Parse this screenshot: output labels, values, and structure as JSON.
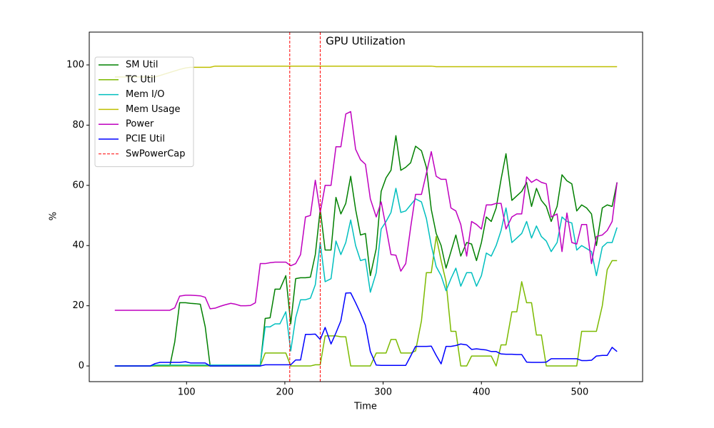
{
  "chart_data": {
    "type": "line",
    "title": "GPU Utilization",
    "x_label": "Time",
    "y_label": "%",
    "x": [
      27,
      32,
      37,
      42,
      47,
      53,
      58,
      63,
      68,
      73,
      78,
      83,
      88,
      93,
      99,
      104,
      109,
      114,
      119,
      124,
      129,
      134,
      139,
      145,
      150,
      155,
      160,
      165,
      170,
      175,
      180,
      185,
      190,
      195,
      201,
      206,
      211,
      216,
      221,
      226,
      231,
      236,
      241,
      247,
      252,
      257,
      262,
      267,
      272,
      277,
      282,
      287,
      293,
      298,
      303,
      308,
      313,
      318,
      323,
      328,
      333,
      339,
      344,
      349,
      354,
      359,
      364,
      369,
      374,
      379,
      385,
      390,
      395,
      400,
      405,
      410,
      415,
      420,
      425,
      431,
      436,
      441,
      446,
      451,
      456,
      461,
      466,
      471,
      477,
      482,
      487,
      492,
      497,
      502,
      507,
      512,
      517,
      523,
      528,
      533,
      538
    ],
    "series": [
      {
        "name": "SM Util",
        "color": "#008000",
        "values": [
          0,
          0,
          0,
          0,
          0,
          0,
          0,
          0,
          0,
          0,
          0,
          0,
          8,
          21,
          21,
          20.8,
          20.7,
          20.5,
          13,
          0,
          0,
          0,
          0,
          0,
          0,
          0,
          0,
          0,
          0,
          0,
          15.8,
          16,
          25.5,
          25.5,
          30,
          14,
          29,
          29.3,
          29.3,
          29.5,
          37,
          52,
          38.5,
          38.5,
          56,
          50.5,
          54,
          63,
          52,
          43.5,
          44,
          30,
          39,
          58,
          62.5,
          65,
          76.5,
          65,
          66,
          67.5,
          73,
          71.5,
          66,
          52,
          44,
          40,
          32.5,
          38,
          43.5,
          36.5,
          41,
          40.5,
          35,
          41,
          49.5,
          48,
          52.5,
          62,
          70.5,
          55,
          56.5,
          58,
          61,
          53,
          59,
          55,
          53,
          48,
          53,
          63.5,
          61.5,
          60.5,
          51.5,
          53.5,
          52.5,
          50.5,
          40,
          52.5,
          53.5,
          53,
          61
        ]
      },
      {
        "name": "TC Util",
        "color": "#7cba00",
        "values": [
          0,
          0,
          0,
          0,
          0,
          0,
          0,
          0,
          0,
          0,
          0,
          0,
          0,
          0,
          0,
          0,
          0,
          0,
          0,
          0,
          0,
          0,
          0,
          0,
          0,
          0,
          0,
          0,
          0,
          0,
          4.3,
          4.3,
          4.3,
          4.3,
          4.3,
          0,
          0,
          0,
          0,
          0,
          0.4,
          0.4,
          10,
          10,
          10,
          9.7,
          9.7,
          0,
          0,
          0,
          0,
          0,
          4.3,
          4.3,
          4.3,
          8.8,
          8.8,
          4.3,
          4.3,
          4.3,
          5,
          15,
          31,
          31,
          43,
          35,
          28,
          11.5,
          11.5,
          0,
          0,
          3.3,
          3.3,
          3.3,
          3.3,
          3.3,
          0,
          7,
          7,
          18,
          18,
          28,
          21,
          21,
          10.3,
          10.3,
          0,
          0,
          0,
          0,
          0,
          0,
          0,
          11.5,
          11.5,
          11.5,
          11.5,
          20,
          32,
          35,
          35
        ]
      },
      {
        "name": "Mem I/O",
        "color": "#00bfbf",
        "values": [
          0,
          0,
          0,
          0,
          0,
          0,
          0,
          0,
          0.3,
          0.3,
          0.3,
          0.3,
          0.3,
          0.3,
          0.3,
          0.3,
          0.3,
          0.3,
          0.3,
          0.3,
          0.3,
          0.3,
          0.3,
          0.3,
          0.3,
          0.3,
          0.3,
          0.3,
          0.3,
          0.3,
          13,
          13,
          14,
          14,
          18,
          5,
          16,
          22,
          22,
          22.5,
          27,
          41,
          28,
          29,
          41.5,
          37,
          41,
          48.5,
          40,
          35,
          35.5,
          24.5,
          31,
          45.5,
          48,
          51,
          59,
          51,
          51.5,
          53.5,
          55.5,
          54.5,
          49,
          40,
          33,
          30,
          25,
          29,
          32.5,
          26.5,
          31,
          31,
          26.5,
          30,
          37.5,
          36.5,
          40,
          45,
          52.5,
          41,
          42.5,
          44,
          48,
          42.5,
          46.5,
          43,
          41.5,
          38,
          41,
          49.5,
          48,
          47.5,
          38.5,
          40,
          39,
          38,
          30,
          39.5,
          41,
          41,
          46
        ]
      },
      {
        "name": "Mem Usage",
        "color": "#bfbf00",
        "values": [
          96,
          96,
          96,
          96,
          96,
          96,
          96,
          96,
          96,
          96.5,
          97,
          97.5,
          98,
          98.5,
          99,
          99.2,
          99.2,
          99.2,
          99.2,
          99.2,
          99.6,
          99.6,
          99.6,
          99.6,
          99.6,
          99.6,
          99.6,
          99.6,
          99.6,
          99.6,
          99.6,
          99.6,
          99.6,
          99.6,
          99.6,
          99.6,
          99.6,
          99.6,
          99.6,
          99.6,
          99.6,
          99.6,
          99.6,
          99.6,
          99.6,
          99.6,
          99.6,
          99.6,
          99.6,
          99.6,
          99.6,
          99.6,
          99.6,
          99.6,
          99.6,
          99.6,
          99.6,
          99.6,
          99.6,
          99.6,
          99.6,
          99.6,
          99.6,
          99.6,
          99.4,
          99.4,
          99.4,
          99.4,
          99.4,
          99.4,
          99.4,
          99.4,
          99.4,
          99.4,
          99.4,
          99.4,
          99.4,
          99.4,
          99.4,
          99.4,
          99.4,
          99.4,
          99.4,
          99.4,
          99.4,
          99.4,
          99.4,
          99.4,
          99.4,
          99.4,
          99.4,
          99.4,
          99.4,
          99.4,
          99.4,
          99.4,
          99.4,
          99.4,
          99.4,
          99.4,
          99.4
        ]
      },
      {
        "name": "Power",
        "color": "#bf00bf",
        "values": [
          18.5,
          18.5,
          18.5,
          18.5,
          18.5,
          18.5,
          18.5,
          18.5,
          18.5,
          18.5,
          18.5,
          18.5,
          19.3,
          23.2,
          23.5,
          23.5,
          23.4,
          23.3,
          22.8,
          19,
          19.2,
          19.8,
          20.3,
          20.8,
          20.5,
          20,
          20,
          20.1,
          21,
          34,
          34,
          34.3,
          34.5,
          34.5,
          34.5,
          33.3,
          34,
          37,
          49.5,
          50,
          61.7,
          51,
          60,
          60,
          72.8,
          72.8,
          83.7,
          84.5,
          72,
          68.5,
          67,
          55.5,
          49.5,
          54.5,
          46,
          37,
          36.8,
          31.5,
          34,
          46,
          57,
          57,
          64,
          71.2,
          63,
          62,
          62,
          52.5,
          51.5,
          47,
          36.5,
          48,
          47,
          45.5,
          53.5,
          53.5,
          54,
          54,
          45.5,
          49.5,
          50.5,
          50.5,
          62.8,
          61,
          62,
          61,
          60.5,
          49.5,
          50.5,
          38,
          50.8,
          41,
          40.5,
          47,
          47,
          34,
          43,
          43.5,
          45,
          48,
          61
        ]
      },
      {
        "name": "PCIE Util",
        "color": "#0000ff",
        "values": [
          0,
          0,
          0,
          0,
          0,
          0,
          0,
          0,
          0.8,
          1.2,
          1.2,
          1.2,
          1.2,
          1.2,
          1.4,
          1,
          1,
          1,
          1,
          0,
          0,
          0,
          0,
          0,
          0,
          0,
          0,
          0,
          0,
          0,
          0.4,
          0.4,
          0.4,
          0.4,
          0.4,
          0.4,
          2,
          2,
          10.5,
          10.5,
          10.6,
          8.8,
          12.8,
          7.3,
          11,
          15,
          24.2,
          24.3,
          21,
          17.5,
          13.5,
          4.8,
          0.3,
          0.2,
          0.2,
          0.2,
          0.2,
          0.2,
          0.2,
          3.3,
          6.5,
          6.5,
          6.5,
          6.6,
          3.5,
          0.7,
          6.5,
          6.5,
          6.8,
          7.3,
          7,
          5.5,
          5.7,
          5.5,
          5.3,
          4.8,
          4.8,
          4,
          3.9,
          3.9,
          3.8,
          3.8,
          1.3,
          1.2,
          1.2,
          1.2,
          1.3,
          2.4,
          2.4,
          2.4,
          2.4,
          2.4,
          2.4,
          1.8,
          1.8,
          1.9,
          3.3,
          3.5,
          3.5,
          6.2,
          4.8
        ]
      }
    ],
    "vlines": {
      "name": "SwPowerCap",
      "color": "#ff0000",
      "x": [
        205,
        236
      ]
    },
    "xlim": [
      1,
      564
    ],
    "ylim": [
      -5.2,
      110.9
    ],
    "xticks": [
      100,
      200,
      300,
      400,
      500
    ],
    "yticks": [
      0,
      20,
      40,
      60,
      80,
      100
    ],
    "legend": "upper left"
  }
}
